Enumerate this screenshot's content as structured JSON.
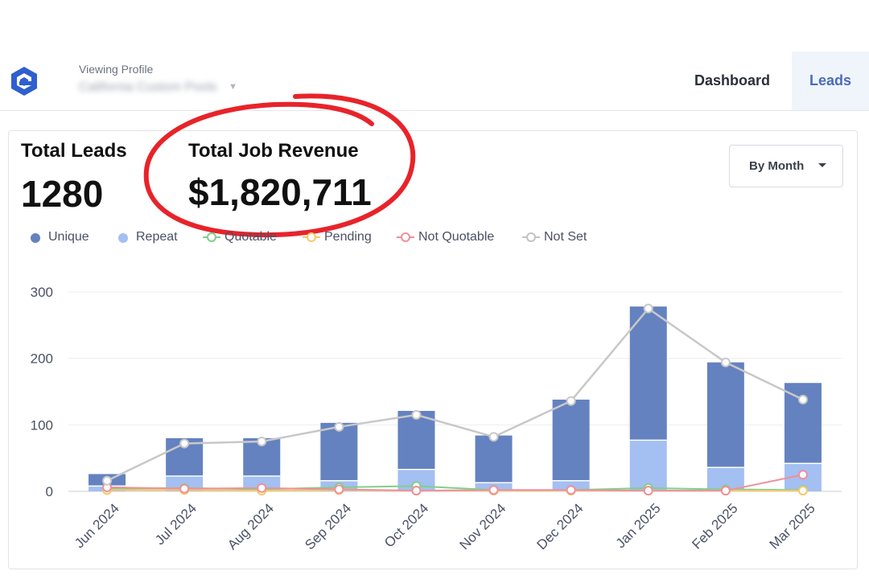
{
  "header": {
    "logo_icon": "hexagon-logo-icon",
    "profile_label": "Viewing Profile",
    "profile_name": "California Custom Pools",
    "nav": {
      "dashboard": "Dashboard",
      "leads": "Leads"
    }
  },
  "stats": {
    "total_leads_label": "Total Leads",
    "total_leads_value": "1280",
    "total_revenue_label": "Total Job Revenue",
    "total_revenue_value": "$1,820,711"
  },
  "period_select": {
    "selected": "By Month",
    "icon": "chevron-down-icon"
  },
  "legend": [
    {
      "label": "Unique",
      "style": "dot",
      "color": "#6482c0"
    },
    {
      "label": "Repeat",
      "style": "dot",
      "color": "#a4bff2"
    },
    {
      "label": "Quotable",
      "style": "ring",
      "color": "#7fd08a"
    },
    {
      "label": "Pending",
      "style": "ring",
      "color": "#f5c96a"
    },
    {
      "label": "Not Quotable",
      "style": "ring",
      "color": "#f08f9a"
    },
    {
      "label": "Not Set",
      "style": "ring",
      "color": "#c3c3c3"
    }
  ],
  "colors": {
    "unique": "#6482c0",
    "repeat": "#a4bff2",
    "quotable": "#7fd08a",
    "pending": "#f5c96a",
    "not_quotable": "#f08f9a",
    "not_set": "#c8c8c8",
    "annotation": "#e8232a",
    "accent": "#4b6cb7"
  },
  "chart_data": {
    "type": "bar",
    "categories": [
      "Jun 2024",
      "Jul 2024",
      "Aug 2024",
      "Sep 2024",
      "Oct 2024",
      "Nov 2024",
      "Dec 2024",
      "Jan 2025",
      "Feb 2025",
      "Mar 2025"
    ],
    "ylim": [
      0,
      300
    ],
    "yticks": [
      0,
      100,
      200,
      300
    ],
    "grid": true,
    "legend_position": "top-left",
    "stacked_bars": [
      {
        "name": "Unique",
        "values": [
          18,
          57,
          57,
          87,
          88,
          71,
          122,
          201,
          158,
          121
        ]
      },
      {
        "name": "Repeat",
        "values": [
          8,
          23,
          23,
          16,
          33,
          13,
          16,
          77,
          36,
          42
        ]
      }
    ],
    "lines": [
      {
        "name": "Quotable",
        "values": [
          4,
          5,
          3,
          6,
          8,
          2,
          2,
          5,
          3,
          2
        ]
      },
      {
        "name": "Pending",
        "values": [
          2,
          2,
          1,
          2,
          1,
          1,
          1,
          1,
          1,
          1
        ]
      },
      {
        "name": "Not Quotable",
        "values": [
          6,
          4,
          5,
          3,
          1,
          2,
          2,
          1,
          1,
          25
        ]
      },
      {
        "name": "Not Set",
        "values": [
          16,
          72,
          75,
          97,
          115,
          82,
          136,
          275,
          194,
          138
        ]
      }
    ]
  }
}
